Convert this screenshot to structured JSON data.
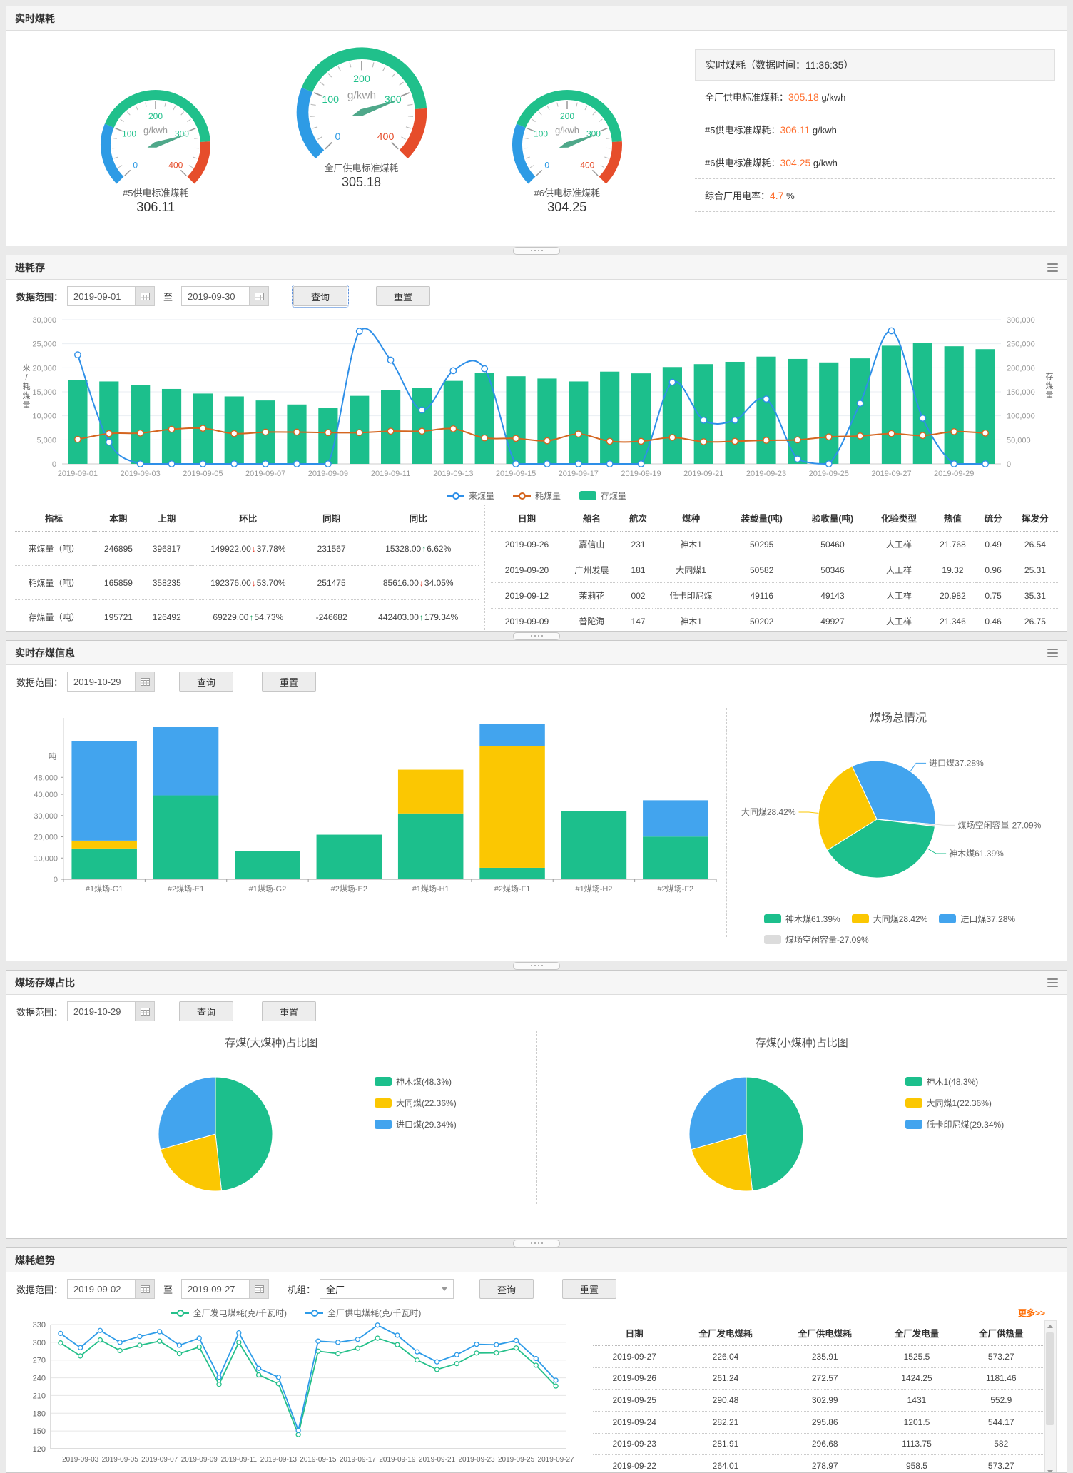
{
  "panel_realtime": {
    "title": "实时煤耗",
    "stats": {
      "header": "实时煤耗（数据时间：11:36:35）",
      "rows": [
        {
          "label": "全厂供电标准煤耗：",
          "value": "305.18",
          "suffix": " g/kwh"
        },
        {
          "label": "#5供电标准煤耗：",
          "value": "306.11",
          "suffix": " g/kwh"
        },
        {
          "label": "#6供电标准煤耗：",
          "value": "304.25",
          "suffix": " g/kwh"
        },
        {
          "label": "综合厂用电率：",
          "value": "4.7",
          "suffix": " %"
        }
      ]
    }
  },
  "panel_jhc": {
    "title": "进耗存",
    "filters": {
      "label": "数据范围：",
      "from": "2019-09-01",
      "mid": "至",
      "to": "2019-09-30",
      "query": "查询",
      "reset": "重置"
    },
    "summary_table": {
      "headers": [
        "指标",
        "本期",
        "上期",
        "环比",
        "同期",
        "同比"
      ],
      "rows": [
        [
          "来煤量（吨）",
          "246895",
          "396817",
          {
            "v": "149922.00",
            "dir": "down",
            "p": "37.78%"
          },
          "231567",
          {
            "v": "15328.00",
            "dir": "up",
            "p": "6.62%"
          }
        ],
        [
          "耗煤量（吨）",
          "165859",
          "358235",
          {
            "v": "192376.00",
            "dir": "down",
            "p": "53.70%"
          },
          "251475",
          {
            "v": "85616.00",
            "dir": "down",
            "p": "34.05%"
          }
        ],
        [
          "存煤量（吨）",
          "195721",
          "126492",
          {
            "v": "69229.00",
            "dir": "up",
            "p": "54.73%"
          },
          "-246682",
          {
            "v": "442403.00",
            "dir": "up",
            "p": "179.34%"
          }
        ]
      ]
    },
    "ship_table": {
      "headers": [
        "日期",
        "船名",
        "航次",
        "煤种",
        "装载量(吨)",
        "验收量(吨)",
        "化验类型",
        "热值",
        "硫分",
        "挥发分"
      ],
      "rows": [
        [
          "2019-09-26",
          "嘉信山",
          "231",
          "神木1",
          "50295",
          "50460",
          "人工样",
          "21.768",
          "0.49",
          "26.54"
        ],
        [
          "2019-09-20",
          "广州发展",
          "181",
          "大同煤1",
          "50582",
          "50346",
          "人工样",
          "19.32",
          "0.96",
          "25.31"
        ],
        [
          "2019-09-12",
          "茉莉花",
          "002",
          "低卡印尼煤",
          "49116",
          "49143",
          "人工样",
          "20.982",
          "0.75",
          "35.31"
        ],
        [
          "2019-09-09",
          "普陀海",
          "147",
          "神木1",
          "50202",
          "49927",
          "人工样",
          "21.346",
          "0.46",
          "26.75"
        ]
      ]
    }
  },
  "panel_storage": {
    "title": "实时存煤信息",
    "filters": {
      "label": "数据范围：",
      "date": "2019-10-29",
      "query": "查询",
      "reset": "重置"
    }
  },
  "panel_ratio": {
    "title": "煤场存煤占比",
    "filters": {
      "label": "数据范围：",
      "date": "2019-10-29",
      "query": "查询",
      "reset": "重置"
    }
  },
  "panel_trend": {
    "title": "煤耗趋势",
    "filters": {
      "label": "数据范围：",
      "from": "2019-09-02",
      "mid": "至",
      "to": "2019-09-27",
      "unit_label": "机组：",
      "unit": "全厂",
      "query": "查询",
      "reset": "重置"
    },
    "more": "更多>>",
    "table": {
      "headers": [
        "日期",
        "全厂发电煤耗",
        "全厂供电煤耗",
        "全厂发电量",
        "全厂供热量"
      ],
      "rows": [
        [
          "2019-09-27",
          "226.04",
          "235.91",
          "1525.5",
          "573.27"
        ],
        [
          "2019-09-26",
          "261.24",
          "272.57",
          "1424.25",
          "1181.46"
        ],
        [
          "2019-09-25",
          "290.48",
          "302.99",
          "1431",
          "552.9"
        ],
        [
          "2019-09-24",
          "282.21",
          "295.86",
          "1201.5",
          "544.17"
        ],
        [
          "2019-09-23",
          "281.91",
          "296.68",
          "1113.75",
          "582"
        ],
        [
          "2019-09-22",
          "264.01",
          "278.97",
          "958.5",
          "573.27"
        ]
      ]
    }
  },
  "chart_data": [
    {
      "id": "gauge-5",
      "type": "gauge",
      "name": "#5供电标准煤耗",
      "value": 306.11,
      "unit": "g/kwh",
      "min": 0,
      "max": 400,
      "segments": [
        {
          "to": 0.25,
          "color": "#2e9be5"
        },
        {
          "to": 0.82,
          "color": "#20c08b"
        },
        {
          "to": 1,
          "color": "#e64d2b"
        }
      ]
    },
    {
      "id": "gauge-all",
      "type": "gauge",
      "name": "全厂供电标准煤耗",
      "value": 305.18,
      "unit": "g/kwh",
      "min": 0,
      "max": 400,
      "segments": [
        {
          "to": 0.25,
          "color": "#2e9be5"
        },
        {
          "to": 0.82,
          "color": "#20c08b"
        },
        {
          "to": 1,
          "color": "#e64d2b"
        }
      ]
    },
    {
      "id": "gauge-6",
      "type": "gauge",
      "name": "#6供电标准煤耗",
      "value": 304.25,
      "unit": "g/kwh",
      "min": 0,
      "max": 400,
      "segments": [
        {
          "to": 0.25,
          "color": "#2e9be5"
        },
        {
          "to": 0.82,
          "color": "#20c08b"
        },
        {
          "to": 1,
          "color": "#e64d2b"
        }
      ]
    },
    {
      "id": "jhc-combo",
      "type": "combo",
      "x": [
        "2019-09-01",
        "2019-09-02",
        "2019-09-03",
        "2019-09-04",
        "2019-09-05",
        "2019-09-06",
        "2019-09-07",
        "2019-09-08",
        "2019-09-09",
        "2019-09-10",
        "2019-09-11",
        "2019-09-12",
        "2019-09-13",
        "2019-09-14",
        "2019-09-15",
        "2019-09-16",
        "2019-09-17",
        "2019-09-18",
        "2019-09-19",
        "2019-09-20",
        "2019-09-21",
        "2019-09-22",
        "2019-09-23",
        "2019-09-24",
        "2019-09-25",
        "2019-09-26",
        "2019-09-27",
        "2019-09-28",
        "2019-09-29",
        "2019-09-30"
      ],
      "left_axis": {
        "label": "来/耗煤量",
        "min": 0,
        "max": 30000,
        "step": 5000
      },
      "right_axis": {
        "label": "存煤量",
        "min": 0,
        "max": 250000,
        "step": 50000
      },
      "series": [
        {
          "name": "存煤量",
          "kind": "bar",
          "axis": "right",
          "color": "#1cbf8c",
          "values": [
            145000,
            143000,
            137000,
            130000,
            122000,
            117000,
            110000,
            103000,
            97000,
            118000,
            128000,
            132000,
            144000,
            158000,
            152000,
            148000,
            143000,
            160000,
            157000,
            168000,
            173000,
            177000,
            186000,
            182000,
            176000,
            183000,
            205000,
            210000,
            204000,
            199000
          ]
        },
        {
          "name": "来煤量",
          "kind": "line",
          "axis": "left",
          "color": "#2e8fe8",
          "values": [
            22700,
            4500,
            0,
            0,
            0,
            0,
            0,
            0,
            0,
            27600,
            21600,
            11200,
            19400,
            19800,
            0,
            0,
            0,
            0,
            0,
            17000,
            9100,
            9100,
            13500,
            1000,
            0,
            12600,
            27700,
            9500,
            0,
            0
          ]
        },
        {
          "name": "耗煤量",
          "kind": "line",
          "axis": "left",
          "color": "#d4651f",
          "values": [
            5100,
            6300,
            6400,
            7200,
            7400,
            6300,
            6600,
            6600,
            6500,
            6500,
            6800,
            6800,
            7300,
            5400,
            5300,
            4800,
            6200,
            4700,
            4700,
            5500,
            4600,
            4700,
            4900,
            5000,
            5600,
            5800,
            6300,
            5900,
            6700,
            6400
          ]
        }
      ],
      "legend": [
        {
          "label": "来煤量",
          "marker": "line",
          "color": "#2e8fe8"
        },
        {
          "label": "耗煤量",
          "marker": "line",
          "color": "#d4651f"
        },
        {
          "label": "存煤量",
          "marker": "rect",
          "color": "#1cbf8c"
        }
      ]
    },
    {
      "id": "storage-stack",
      "type": "stack",
      "unit": "吨",
      "ymax": 76000,
      "ticks": [
        0,
        10000,
        20000,
        30000,
        40000,
        48000
      ],
      "categories": [
        "#1煤场-G1",
        "#2煤场-E1",
        "#1煤场-G2",
        "#2煤场-E2",
        "#1煤场-H1",
        "#2煤场-F1",
        "#1煤场-H2",
        "#2煤场-F2"
      ],
      "series": [
        {
          "name": "神木煤",
          "color": "#1cbf8c",
          "values": [
            14500,
            39500,
            13400,
            21000,
            31000,
            5400,
            32100,
            20100
          ]
        },
        {
          "name": "大同煤",
          "color": "#fbc702",
          "values": [
            3700,
            0,
            0,
            0,
            20600,
            57200,
            0,
            0
          ]
        },
        {
          "name": "进口煤",
          "color": "#42a4ee",
          "values": [
            47000,
            32300,
            0,
            0,
            0,
            10600,
            0,
            17100
          ]
        }
      ]
    },
    {
      "id": "storage-pie",
      "type": "pie",
      "title": "煤场总情况",
      "slices": [
        {
          "name": "进口煤",
          "pct_label": "37.28%",
          "color": "#42a4ee",
          "sweep_deg": 120,
          "label_angle": 55
        },
        {
          "name": "煤场空闲容量",
          "pct_label": "-27.09%",
          "color": "#dcdcdc",
          "sweep_deg": 2,
          "label_angle": -5
        },
        {
          "name": "神木煤",
          "pct_label": "61.39%",
          "color": "#1cbf8c",
          "sweep_deg": 141,
          "label_angle": -30
        },
        {
          "name": "大同煤",
          "pct_label": "28.42%",
          "color": "#fbc702",
          "sweep_deg": 97,
          "label_angle": 174
        }
      ],
      "legend": [
        {
          "label": "神木煤61.39%",
          "marker": "rect",
          "color": "#1cbf8c"
        },
        {
          "label": "大同煤28.42%",
          "marker": "rect",
          "color": "#fbc702"
        },
        {
          "label": "进口煤37.28%",
          "marker": "rect",
          "color": "#42a4ee"
        },
        {
          "label": "煤场空闲容量-27.09%",
          "marker": "rect",
          "color": "#dcdcdc"
        }
      ]
    },
    {
      "id": "ratio-pie-big",
      "type": "pie",
      "title": "存煤(大煤种)占比图",
      "slices": [
        {
          "name": "神木煤",
          "pct": 48.3,
          "color": "#1cbf8c"
        },
        {
          "name": "大同煤",
          "pct": 22.36,
          "color": "#fbc702"
        },
        {
          "name": "进口煤",
          "pct": 29.34,
          "color": "#42a4ee"
        }
      ],
      "legend": [
        {
          "label": "神木煤(48.3%)",
          "marker": "rect",
          "color": "#1cbf8c"
        },
        {
          "label": "大同煤(22.36%)",
          "marker": "rect",
          "color": "#fbc702"
        },
        {
          "label": "进口煤(29.34%)",
          "marker": "rect",
          "color": "#42a4ee"
        }
      ]
    },
    {
      "id": "ratio-pie-small",
      "type": "pie",
      "title": "存煤(小煤种)占比图",
      "slices": [
        {
          "name": "神木1",
          "pct": 48.3,
          "color": "#1cbf8c"
        },
        {
          "name": "大同煤1",
          "pct": 22.36,
          "color": "#fbc702"
        },
        {
          "name": "低卡印尼煤",
          "pct": 29.34,
          "color": "#42a4ee"
        }
      ],
      "legend": [
        {
          "label": "神木1(48.3%)",
          "marker": "rect",
          "color": "#1cbf8c"
        },
        {
          "label": "大同煤1(22.36%)",
          "marker": "rect",
          "color": "#fbc702"
        },
        {
          "label": "低卡印尼煤(29.34%)",
          "marker": "rect",
          "color": "#42a4ee"
        }
      ]
    },
    {
      "id": "trend-lines",
      "type": "trend",
      "ymin": 120,
      "ymax": 330,
      "step": 30,
      "x": [
        "2019-09-02",
        "2019-09-03",
        "2019-09-04",
        "2019-09-05",
        "2019-09-06",
        "2019-09-07",
        "2019-09-08",
        "2019-09-09",
        "2019-09-10",
        "2019-09-11",
        "2019-09-12",
        "2019-09-13",
        "2019-09-14",
        "2019-09-15",
        "2019-09-16",
        "2019-09-17",
        "2019-09-18",
        "2019-09-19",
        "2019-09-20",
        "2019-09-21",
        "2019-09-22",
        "2019-09-23",
        "2019-09-24",
        "2019-09-25",
        "2019-09-26",
        "2019-09-27"
      ],
      "series": [
        {
          "name": "全厂发电煤耗(克/千瓦时)",
          "color": "#25c08a",
          "values": [
            299,
            277,
            304,
            286,
            295,
            302,
            281,
            292,
            229,
            300,
            245,
            230,
            144,
            285,
            281,
            290,
            307,
            296,
            270,
            254,
            264.01,
            281.91,
            282.21,
            290.48,
            261.24,
            226.04
          ]
        },
        {
          "name": "全厂供电煤耗(克/千瓦时)",
          "color": "#2d9be8",
          "values": [
            315,
            291,
            320,
            300,
            310,
            318,
            295,
            307,
            241,
            316,
            256,
            241,
            151,
            302,
            300,
            305,
            329,
            312,
            284,
            267,
            278.97,
            296.68,
            295.86,
            302.99,
            272.57,
            235.91
          ]
        }
      ],
      "legend": [
        {
          "label": "全厂发电煤耗(克/千瓦时)",
          "marker": "line",
          "color": "#25c08a"
        },
        {
          "label": "全厂供电煤耗(克/千瓦时)",
          "marker": "line",
          "color": "#2d9be8"
        }
      ]
    }
  ]
}
